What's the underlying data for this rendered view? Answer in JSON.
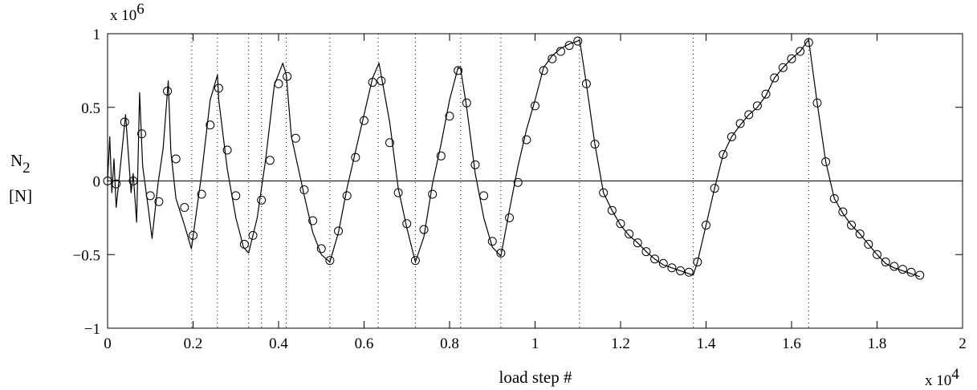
{
  "chart_data": {
    "type": "line",
    "xlabel": "load step #",
    "x_multiplier": "x 10",
    "x_multiplier_exp": "4",
    "ylabel_main": "N",
    "ylabel_sub": "2",
    "ylabel_unit": "[N]",
    "y_multiplier": "x 10",
    "y_multiplier_exp": "6",
    "xlim": [
      0,
      2
    ],
    "ylim": [
      -1,
      1
    ],
    "xticks": [
      0,
      0.2,
      0.4,
      0.6,
      0.8,
      1,
      1.2,
      1.4,
      1.6,
      1.8,
      2
    ],
    "xtick_labels": [
      "0",
      "0.2",
      "0.4",
      "0.6",
      "0.8",
      "1",
      "1.2",
      "1.4",
      "1.6",
      "1.8",
      "2"
    ],
    "yticks": [
      -1,
      -0.5,
      0,
      0.5,
      1
    ],
    "ytick_labels": [
      "−1",
      "−0.5",
      "0",
      "0.5",
      "1"
    ],
    "zero_line": true,
    "vertical_dotted_lines": [
      0.197,
      0.257,
      0.33,
      0.36,
      0.418,
      0.52,
      0.633,
      0.72,
      0.826,
      0.92,
      1.104,
      1.37,
      1.64
    ],
    "series": [
      {
        "style": "solid-line",
        "x": [
          0,
          0.005,
          0.01,
          0.015,
          0.02,
          0.03,
          0.042,
          0.055,
          0.06,
          0.068,
          0.075,
          0.082,
          0.095,
          0.104,
          0.118,
          0.13,
          0.142,
          0.148,
          0.16,
          0.18,
          0.196,
          0.22,
          0.24,
          0.257,
          0.26,
          0.28,
          0.3,
          0.318,
          0.33,
          0.35,
          0.37,
          0.39,
          0.41,
          0.418,
          0.43,
          0.46,
          0.48,
          0.5,
          0.52,
          0.54,
          0.56,
          0.58,
          0.6,
          0.62,
          0.635,
          0.66,
          0.68,
          0.7,
          0.72,
          0.74,
          0.76,
          0.78,
          0.8,
          0.82,
          0.826,
          0.84,
          0.86,
          0.88,
          0.9,
          0.92,
          0.94,
          0.96,
          0.98,
          1.0,
          1.02,
          1.04,
          1.06,
          1.08,
          1.1,
          1.104,
          1.12,
          1.14,
          1.16,
          1.18,
          1.2,
          1.22,
          1.24,
          1.26,
          1.28,
          1.3,
          1.32,
          1.34,
          1.36,
          1.37,
          1.38,
          1.4,
          1.42,
          1.44,
          1.46,
          1.48,
          1.5,
          1.52,
          1.54,
          1.56,
          1.58,
          1.6,
          1.62,
          1.64,
          1.66,
          1.68,
          1.7,
          1.72,
          1.74,
          1.76,
          1.78,
          1.8,
          1.82,
          1.84,
          1.86,
          1.88,
          1.9
        ],
        "values": [
          0,
          0.3,
          -0.08,
          0.15,
          -0.18,
          0.1,
          0.45,
          -0.08,
          0.05,
          -0.28,
          0.6,
          0.1,
          -0.18,
          -0.39,
          -0.02,
          0.22,
          0.68,
          0.2,
          -0.12,
          -0.3,
          -0.46,
          0.05,
          0.55,
          0.72,
          0.55,
          0.08,
          -0.25,
          -0.45,
          -0.49,
          -0.25,
          0.15,
          0.65,
          0.8,
          0.72,
          0.3,
          -0.1,
          -0.35,
          -0.5,
          -0.55,
          -0.35,
          -0.05,
          0.2,
          0.45,
          0.7,
          0.8,
          0.4,
          -0.05,
          -0.32,
          -0.55,
          -0.38,
          -0.02,
          0.25,
          0.55,
          0.77,
          0.76,
          0.5,
          0.05,
          -0.25,
          -0.45,
          -0.51,
          -0.2,
          0.1,
          0.35,
          0.55,
          0.77,
          0.85,
          0.9,
          0.93,
          0.95,
          0.96,
          0.66,
          0.25,
          -0.08,
          -0.2,
          -0.3,
          -0.37,
          -0.42,
          -0.48,
          -0.53,
          -0.57,
          -0.59,
          -0.61,
          -0.63,
          -0.64,
          -0.55,
          -0.3,
          -0.05,
          0.18,
          0.3,
          0.38,
          0.45,
          0.5,
          0.58,
          0.7,
          0.77,
          0.83,
          0.88,
          0.96,
          0.53,
          0.13,
          -0.12,
          -0.22,
          -0.3,
          -0.36,
          -0.43,
          -0.5,
          -0.56,
          -0.59,
          -0.61,
          -0.63,
          -0.65
        ]
      },
      {
        "style": "circle-markers",
        "x": [
          0,
          0.02,
          0.04,
          0.06,
          0.08,
          0.1,
          0.12,
          0.14,
          0.16,
          0.18,
          0.2,
          0.22,
          0.24,
          0.26,
          0.28,
          0.3,
          0.32,
          0.34,
          0.36,
          0.38,
          0.4,
          0.42,
          0.44,
          0.46,
          0.48,
          0.5,
          0.52,
          0.54,
          0.56,
          0.58,
          0.6,
          0.62,
          0.64,
          0.66,
          0.68,
          0.7,
          0.72,
          0.74,
          0.76,
          0.78,
          0.8,
          0.82,
          0.84,
          0.86,
          0.88,
          0.9,
          0.92,
          0.94,
          0.96,
          0.98,
          1.0,
          1.02,
          1.04,
          1.06,
          1.08,
          1.1,
          1.12,
          1.14,
          1.16,
          1.18,
          1.2,
          1.22,
          1.24,
          1.26,
          1.28,
          1.3,
          1.32,
          1.34,
          1.36,
          1.38,
          1.4,
          1.42,
          1.44,
          1.46,
          1.48,
          1.5,
          1.52,
          1.54,
          1.56,
          1.58,
          1.6,
          1.62,
          1.64,
          1.66,
          1.68,
          1.7,
          1.72,
          1.74,
          1.76,
          1.78,
          1.8,
          1.82,
          1.84,
          1.86,
          1.88,
          1.9
        ],
        "values": [
          0,
          -0.02,
          0.4,
          0.0,
          0.32,
          -0.1,
          -0.14,
          0.61,
          0.15,
          -0.18,
          -0.37,
          -0.09,
          0.38,
          0.63,
          0.21,
          -0.1,
          -0.43,
          -0.37,
          -0.13,
          0.14,
          0.66,
          0.71,
          0.29,
          -0.06,
          -0.27,
          -0.46,
          -0.54,
          -0.34,
          -0.1,
          0.16,
          0.41,
          0.67,
          0.68,
          0.26,
          -0.08,
          -0.29,
          -0.54,
          -0.33,
          -0.09,
          0.17,
          0.44,
          0.75,
          0.53,
          0.11,
          -0.1,
          -0.41,
          -0.49,
          -0.25,
          -0.01,
          0.28,
          0.51,
          0.75,
          0.83,
          0.88,
          0.92,
          0.95,
          0.66,
          0.25,
          -0.08,
          -0.2,
          -0.29,
          -0.36,
          -0.42,
          -0.48,
          -0.53,
          -0.56,
          -0.59,
          -0.61,
          -0.62,
          -0.55,
          -0.3,
          -0.05,
          0.18,
          0.3,
          0.39,
          0.45,
          0.51,
          0.59,
          0.7,
          0.77,
          0.83,
          0.88,
          0.94,
          0.53,
          0.13,
          -0.12,
          -0.21,
          -0.3,
          -0.36,
          -0.43,
          -0.5,
          -0.55,
          -0.58,
          -0.6,
          -0.62,
          -0.64
        ]
      }
    ]
  }
}
